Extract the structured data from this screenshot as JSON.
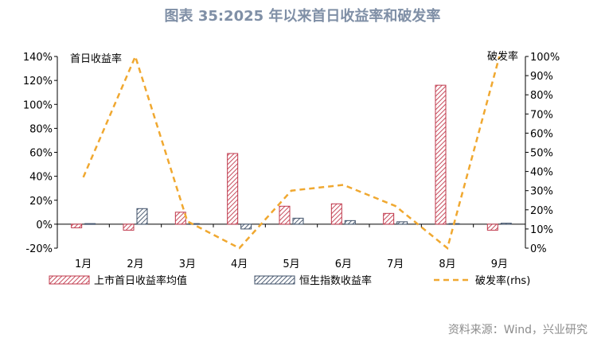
{
  "title": "图表 35:2025 年以来首日收益率和破发率",
  "source": "资料来源：Wind，兴业研究",
  "chart_data": {
    "type": "bar",
    "categories": [
      "1月",
      "2月",
      "3月",
      "4月",
      "5月",
      "6月",
      "7月",
      "8月",
      "9月"
    ],
    "y_left": {
      "label": "首日收益率",
      "min": -20,
      "max": 140,
      "step": 20,
      "ticks": [
        "-20%",
        "0%",
        "20%",
        "40%",
        "60%",
        "80%",
        "100%",
        "120%",
        "140%"
      ]
    },
    "y_right": {
      "label": "破发率",
      "min": 0,
      "max": 100,
      "step": 10,
      "ticks": [
        "0%",
        "10%",
        "20%",
        "30%",
        "40%",
        "50%",
        "60%",
        "70%",
        "80%",
        "90%",
        "100%"
      ]
    },
    "series": [
      {
        "name": "上市首日收益率均值",
        "axis": "left",
        "kind": "bar",
        "values": [
          -3,
          -5,
          10,
          59,
          15,
          17,
          9,
          116,
          -5
        ]
      },
      {
        "name": "恒生指数收益率",
        "axis": "left",
        "kind": "bar",
        "values": [
          0.5,
          13,
          0.5,
          -4,
          5,
          3,
          2,
          0.5,
          0.8
        ]
      },
      {
        "name": "破发率(rhs)",
        "axis": "right",
        "kind": "line",
        "values": [
          37,
          100,
          14,
          0,
          30,
          33,
          22,
          0,
          100
        ]
      }
    ],
    "colors": {
      "bar1": "#c0384b",
      "bar2": "#3f5068",
      "line": "#f0a830"
    }
  }
}
